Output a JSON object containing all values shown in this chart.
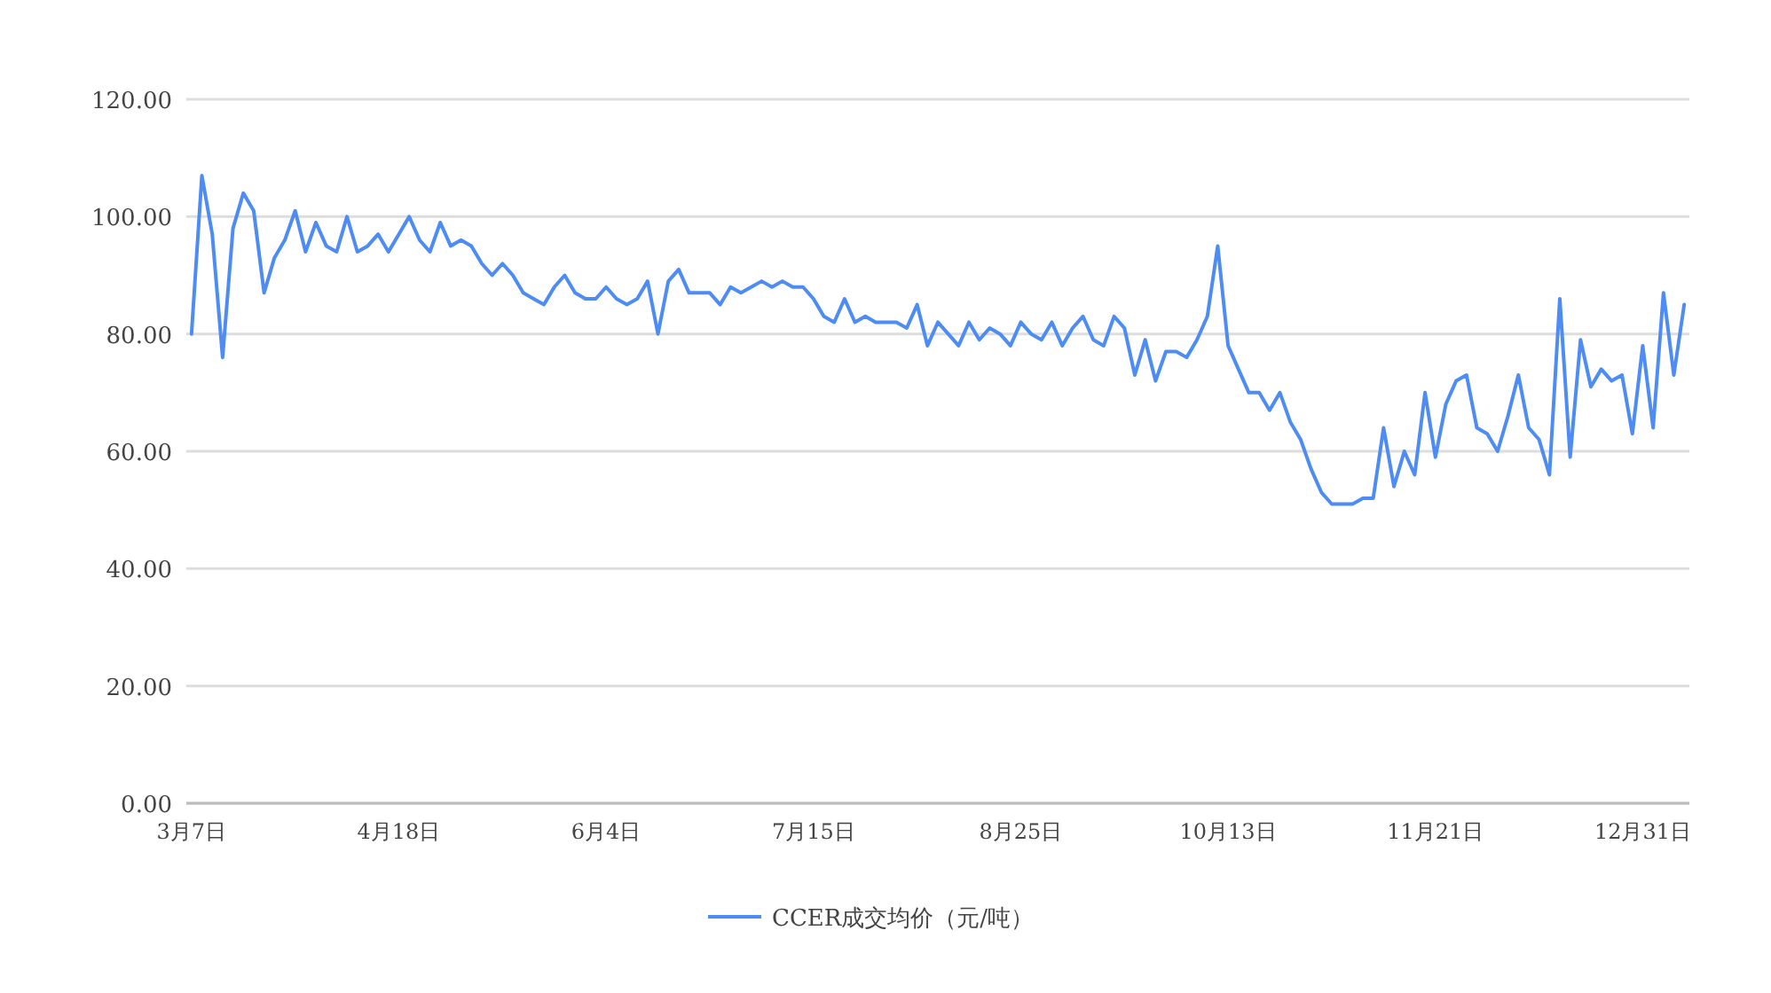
{
  "chart_data": {
    "type": "line",
    "categories": [
      "3月7日",
      null,
      null,
      null,
      null,
      null,
      null,
      null,
      null,
      null,
      null,
      null,
      null,
      null,
      null,
      null,
      null,
      null,
      null,
      null,
      "4月18日",
      null,
      null,
      null,
      null,
      null,
      null,
      null,
      null,
      null,
      null,
      null,
      null,
      null,
      null,
      null,
      null,
      null,
      null,
      null,
      "6月4日",
      null,
      null,
      null,
      null,
      null,
      null,
      null,
      null,
      null,
      null,
      null,
      null,
      null,
      null,
      null,
      null,
      null,
      null,
      null,
      "7月15日",
      null,
      null,
      null,
      null,
      null,
      null,
      null,
      null,
      null,
      null,
      null,
      null,
      null,
      null,
      null,
      null,
      null,
      null,
      null,
      "8月25日",
      null,
      null,
      null,
      null,
      null,
      null,
      null,
      null,
      null,
      null,
      null,
      null,
      null,
      null,
      null,
      null,
      null,
      null,
      null,
      "10月13日",
      null,
      null,
      null,
      null,
      null,
      null,
      null,
      null,
      null,
      null,
      null,
      null,
      null,
      null,
      null,
      null,
      null,
      null,
      null,
      "11月21日",
      null,
      null,
      null,
      null,
      null,
      null,
      null,
      null,
      null,
      null,
      null,
      null,
      null,
      null,
      null,
      null,
      null,
      null,
      null,
      "12月31日",
      null,
      null,
      null,
      null
    ],
    "series": [
      {
        "name": "CCER成交均价（元/吨）",
        "color": "#4d8cf5",
        "values": [
          80,
          107,
          97,
          76,
          98,
          104,
          101,
          87,
          93,
          96,
          101,
          94,
          99,
          95,
          94,
          100,
          94,
          95,
          97,
          94,
          97,
          100,
          96,
          94,
          99,
          95,
          96,
          95,
          92,
          90,
          92,
          90,
          87,
          86,
          85,
          88,
          90,
          87,
          86,
          86,
          88,
          86,
          85,
          86,
          89,
          80,
          89,
          91,
          87,
          87,
          87,
          85,
          88,
          87,
          88,
          89,
          88,
          89,
          88,
          88,
          86,
          83,
          82,
          86,
          82,
          83,
          82,
          82,
          82,
          81,
          85,
          78,
          82,
          80,
          78,
          82,
          79,
          81,
          80,
          78,
          82,
          80,
          79,
          82,
          78,
          81,
          83,
          79,
          78,
          83,
          81,
          73,
          79,
          72,
          77,
          77,
          76,
          79,
          83,
          95,
          78,
          74,
          70,
          70,
          67,
          70,
          65,
          62,
          57,
          53,
          51,
          51,
          51,
          52,
          52,
          64,
          54,
          60,
          56,
          70,
          59,
          68,
          72,
          73,
          64,
          63,
          60,
          66,
          73,
          64,
          62,
          56,
          86,
          59,
          79,
          71,
          74,
          72,
          73,
          63,
          78,
          64,
          87,
          73,
          85
        ]
      }
    ],
    "ylim": [
      0,
      120
    ],
    "yticks": [
      {
        "value": 0,
        "label": "0.00"
      },
      {
        "value": 20,
        "label": "20.00"
      },
      {
        "value": 40,
        "label": "40.00"
      },
      {
        "value": 60,
        "label": "60.00"
      },
      {
        "value": 80,
        "label": "80.00"
      },
      {
        "value": 100,
        "label": "100.00"
      },
      {
        "value": 120,
        "label": "120.00"
      }
    ],
    "grid": "y",
    "legend": "bottom",
    "line_style": "solid",
    "marker": "none"
  }
}
